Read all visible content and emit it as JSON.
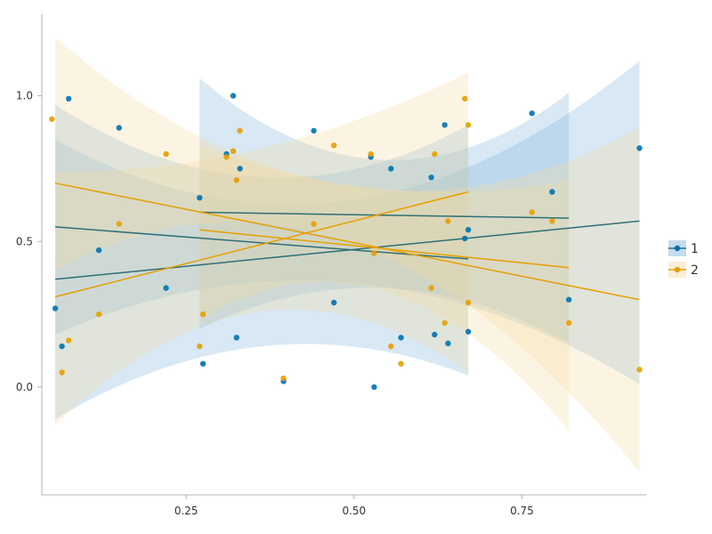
{
  "chart_data": {
    "type": "scatter",
    "title": "",
    "xlabel": "",
    "ylabel": "",
    "xlim": [
      0.035,
      0.935
    ],
    "ylim": [
      -0.37,
      1.28
    ],
    "xticks": [
      0.25,
      0.5,
      0.75
    ],
    "xtick_labels": [
      "0.25",
      "0.50",
      "0.75"
    ],
    "yticks": [
      0.0,
      0.5,
      1.0
    ],
    "ytick_labels": [
      "0.0",
      "0.5",
      "1.0"
    ],
    "grid": false,
    "legend_position": "right",
    "series": [
      {
        "name": "1",
        "color": "#0072b2",
        "band_color": "#7fb2d9",
        "line_color": "#2e6f76",
        "points": [
          [
            0.055,
            0.27
          ],
          [
            0.065,
            0.14
          ],
          [
            0.075,
            0.99
          ],
          [
            0.12,
            0.47
          ],
          [
            0.15,
            0.89
          ],
          [
            0.22,
            0.34
          ],
          [
            0.27,
            0.65
          ],
          [
            0.275,
            0.08
          ],
          [
            0.31,
            0.8
          ],
          [
            0.32,
            1.0
          ],
          [
            0.325,
            0.17
          ],
          [
            0.33,
            0.75
          ],
          [
            0.395,
            0.02
          ],
          [
            0.44,
            0.88
          ],
          [
            0.47,
            0.29
          ],
          [
            0.525,
            0.79
          ],
          [
            0.53,
            0.0
          ],
          [
            0.555,
            0.75
          ],
          [
            0.57,
            0.17
          ],
          [
            0.615,
            0.72
          ],
          [
            0.62,
            0.18
          ],
          [
            0.635,
            0.9
          ],
          [
            0.64,
            0.15
          ],
          [
            0.665,
            0.51
          ],
          [
            0.67,
            0.54
          ],
          [
            0.67,
            0.19
          ],
          [
            0.765,
            0.94
          ],
          [
            0.795,
            0.67
          ],
          [
            0.82,
            0.3
          ],
          [
            0.925,
            0.82
          ]
        ],
        "fits": [
          {
            "x": [
              0.055,
              0.67
            ],
            "y": [
              0.55,
              0.44
            ],
            "ci_lo": [
              -0.11,
              0.04
            ],
            "ci_hi": [
              0.97,
              0.9
            ],
            "ci_mid": [
              0.14,
              0.72
            ]
          },
          {
            "x": [
              0.27,
              0.82
            ],
            "y": [
              0.6,
              0.58
            ],
            "ci_lo": [
              0.2,
              0.15
            ],
            "ci_hi": [
              1.06,
              1.01
            ],
            "ci_mid": [
              0.34,
              0.78
            ]
          },
          {
            "x": [
              0.055,
              0.925
            ],
            "y": [
              0.37,
              0.57
            ],
            "ci_lo": [
              0.18,
              0.01
            ],
            "ci_hi": [
              0.85,
              1.12
            ],
            "ci_mid": [
              0.36,
              0.64
            ]
          }
        ]
      },
      {
        "name": "2",
        "color": "#e69f00",
        "band_color": "#f5d9a0",
        "line_color": "#e69f00",
        "points": [
          [
            0.05,
            0.92
          ],
          [
            0.065,
            0.05
          ],
          [
            0.075,
            0.16
          ],
          [
            0.12,
            0.25
          ],
          [
            0.15,
            0.56
          ],
          [
            0.22,
            0.8
          ],
          [
            0.27,
            0.14
          ],
          [
            0.275,
            0.25
          ],
          [
            0.31,
            0.79
          ],
          [
            0.32,
            0.81
          ],
          [
            0.325,
            0.71
          ],
          [
            0.33,
            0.88
          ],
          [
            0.395,
            0.03
          ],
          [
            0.44,
            0.56
          ],
          [
            0.47,
            0.83
          ],
          [
            0.525,
            0.8
          ],
          [
            0.53,
            0.46
          ],
          [
            0.555,
            0.14
          ],
          [
            0.57,
            0.08
          ],
          [
            0.615,
            0.34
          ],
          [
            0.62,
            0.8
          ],
          [
            0.635,
            0.22
          ],
          [
            0.64,
            0.57
          ],
          [
            0.665,
            0.99
          ],
          [
            0.67,
            0.9
          ],
          [
            0.67,
            0.29
          ],
          [
            0.765,
            0.6
          ],
          [
            0.795,
            0.57
          ],
          [
            0.82,
            0.22
          ],
          [
            0.925,
            0.06
          ]
        ],
        "fits": [
          {
            "x": [
              0.055,
              0.67
            ],
            "y": [
              0.31,
              0.67
            ],
            "ci_lo": [
              -0.13,
              0.05
            ],
            "ci_hi": [
              0.74,
              1.08
            ],
            "ci_mid": [
              0.26,
              0.82
            ]
          },
          {
            "x": [
              0.27,
              0.82
            ],
            "y": [
              0.54,
              0.41
            ],
            "ci_lo": [
              0.23,
              -0.15
            ],
            "ci_hi": [
              0.83,
              0.71
            ],
            "ci_mid": [
              0.33,
              0.68
            ]
          },
          {
            "x": [
              0.055,
              0.925
            ],
            "y": [
              0.7,
              0.3
            ],
            "ci_lo": [
              0.4,
              -0.29
            ],
            "ci_hi": [
              1.2,
              0.89
            ],
            "ci_mid": [
              0.5,
              0.69
            ]
          }
        ]
      }
    ]
  }
}
